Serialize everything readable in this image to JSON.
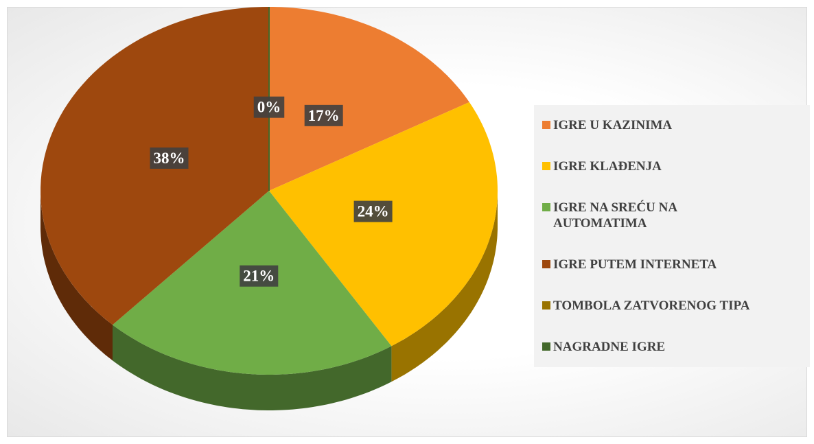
{
  "chart_data": {
    "type": "pie",
    "categories": [
      "IGRE U KAZINIMA",
      "IGRE KLAĐENJA",
      "IGRE NA SREĆU NA AUTOMATIMA",
      "IGRE PUTEM INTERNETA",
      "TOMBOLA ZATVORENOG TIPA",
      "NAGRADNE IGRE"
    ],
    "values": [
      17,
      24,
      21,
      38,
      0,
      0
    ],
    "value_labels": [
      "17%",
      "24%",
      "21%",
      "38%",
      null,
      "0%"
    ],
    "colors": [
      "#ed7d31",
      "#ffc000",
      "#70ad47",
      "#9e480e",
      "#997300",
      "#43682b"
    ],
    "legend": "right"
  }
}
